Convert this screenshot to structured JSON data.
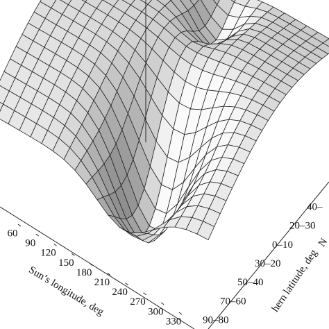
{
  "chart_data": {
    "type": "surface",
    "xlabel": "Sun’s longitude, deg",
    "ylabel": "hern latitude, deg",
    "zlabel": "N",
    "xticks": [
      60,
      90,
      120,
      150,
      180,
      210,
      240,
      270,
      300,
      330
    ],
    "ycategories": [
      "40–",
      "20–30",
      "0–10",
      "30–20",
      "50–40",
      "70–60",
      "90–80"
    ]
  }
}
